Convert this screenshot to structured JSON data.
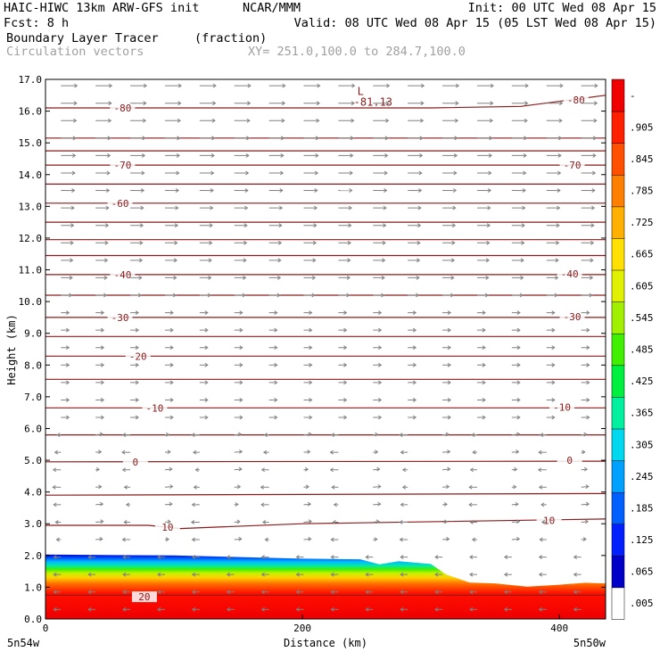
{
  "header": {
    "model": "HAIC-HIWC 13km ARW-GFS init",
    "org": "NCAR/MMM",
    "init": "Init: 00 UTC Wed 08 Apr 15",
    "fcst": "Fcst:    8 h",
    "valid": "Valid: 08 UTC Wed 08 Apr 15 (05 LST Wed 08 Apr 15)",
    "field": "Boundary Layer Tracer",
    "units": "(fraction)",
    "overlay": "Circulation vectors",
    "xy": "XY= 251.0,100.0 to 284.7,100.0"
  },
  "colors": {
    "contour": "#8b1a1a",
    "vector": "#808080",
    "scale": [
      "#ffffff",
      "#0000c8",
      "#0020ff",
      "#0060ff",
      "#00a0ff",
      "#00d8f0",
      "#00f0a0",
      "#00f040",
      "#40f000",
      "#a0f000",
      "#e0f000",
      "#ffe000",
      "#ffb000",
      "#ff8000",
      "#ff5000",
      "#ff2000",
      "#f00000"
    ]
  },
  "chart_data": {
    "type": "cross-section",
    "xlabel": "Distance (km)",
    "ylabel": "Height (km)",
    "xlim": [
      0,
      436
    ],
    "ylim": [
      0,
      17
    ],
    "x_ticks": [
      "0",
      "200",
      "400"
    ],
    "x_tick_values": [
      0,
      200,
      400
    ],
    "y_ticks": [
      "0.0",
      "1.0",
      "2.0",
      "3.0",
      "4.0",
      "5.0",
      "6.0",
      "7.0",
      "8.0",
      "9.0",
      "10.0",
      "11.0",
      "12.0",
      "13.0",
      "14.0",
      "15.0",
      "16.0",
      "17.0"
    ],
    "endpoint_left": "5n54w",
    "endpoint_right": "5n50w",
    "colorbar_labels": [
      ".005",
      ".065",
      ".125",
      ".185",
      ".245",
      ".305",
      ".365",
      ".425",
      ".485",
      ".545",
      ".605",
      ".665",
      ".725",
      ".785",
      ".845",
      ".905",
      "-"
    ],
    "min_label": {
      "marker": "L",
      "value": "-81.13",
      "x": 215,
      "y": 16.4
    },
    "tracer_top": [
      [
        0,
        2.03
      ],
      [
        100,
        2.0
      ],
      [
        200,
        1.9
      ],
      [
        245,
        1.88
      ],
      [
        260,
        1.72
      ],
      [
        275,
        1.82
      ],
      [
        300,
        1.73
      ],
      [
        312,
        1.4
      ],
      [
        330,
        1.15
      ],
      [
        350,
        1.12
      ],
      [
        375,
        1.02
      ],
      [
        400,
        1.08
      ],
      [
        420,
        1.14
      ],
      [
        436,
        1.12
      ]
    ],
    "contours": [
      {
        "label": "20",
        "pts": [
          [
            0,
            0.75
          ],
          [
            436,
            0.75
          ]
        ],
        "labels": [
          [
            77,
            0.7
          ]
        ]
      },
      {
        "label": "10",
        "pts": [
          [
            0,
            2.95
          ],
          [
            80,
            2.95
          ],
          [
            105,
            2.85
          ],
          [
            200,
            3.0
          ],
          [
            436,
            3.15
          ]
        ],
        "labels": [
          [
            95,
            2.9
          ],
          [
            392,
            3.1
          ]
        ]
      },
      {
        "label": "",
        "pts": [
          [
            0,
            3.9
          ],
          [
            436,
            3.95
          ]
        ],
        "labels": []
      },
      {
        "label": "0",
        "pts": [
          [
            0,
            4.95
          ],
          [
            436,
            4.97
          ]
        ],
        "labels": [
          [
            70,
            4.95
          ],
          [
            408,
            5.0
          ]
        ]
      },
      {
        "label": "",
        "pts": [
          [
            0,
            5.8
          ],
          [
            436,
            5.8
          ]
        ],
        "labels": []
      },
      {
        "label": "-10",
        "pts": [
          [
            0,
            6.65
          ],
          [
            436,
            6.65
          ]
        ],
        "labels": [
          [
            85,
            6.65
          ],
          [
            402,
            6.67
          ]
        ]
      },
      {
        "label": "",
        "pts": [
          [
            0,
            7.55
          ],
          [
            436,
            7.55
          ]
        ],
        "labels": []
      },
      {
        "label": "-20",
        "pts": [
          [
            0,
            8.28
          ],
          [
            436,
            8.28
          ]
        ],
        "labels": [
          [
            72,
            8.28
          ]
        ]
      },
      {
        "label": "",
        "pts": [
          [
            0,
            8.9
          ],
          [
            436,
            8.9
          ]
        ],
        "labels": []
      },
      {
        "label": "-30",
        "pts": [
          [
            0,
            9.5
          ],
          [
            436,
            9.5
          ]
        ],
        "labels": [
          [
            58,
            9.5
          ],
          [
            410,
            9.52
          ]
        ]
      },
      {
        "label": "",
        "pts": [
          [
            0,
            10.2
          ],
          [
            436,
            10.2
          ]
        ],
        "labels": []
      },
      {
        "label": "-40",
        "pts": [
          [
            0,
            10.85
          ],
          [
            436,
            10.85
          ]
        ],
        "labels": [
          [
            60,
            10.85
          ],
          [
            408,
            10.87
          ]
        ]
      },
      {
        "label": "",
        "pts": [
          [
            0,
            11.45
          ],
          [
            436,
            11.45
          ]
        ],
        "labels": []
      },
      {
        "label": "",
        "pts": [
          [
            0,
            11.95
          ],
          [
            436,
            11.95
          ]
        ],
        "labels": []
      },
      {
        "label": "",
        "pts": [
          [
            0,
            12.5
          ],
          [
            436,
            12.5
          ]
        ],
        "labels": []
      },
      {
        "label": "-60",
        "pts": [
          [
            0,
            13.1
          ],
          [
            436,
            13.1
          ]
        ],
        "labels": [
          [
            58,
            13.1
          ]
        ]
      },
      {
        "label": "",
        "pts": [
          [
            0,
            13.7
          ],
          [
            436,
            13.7
          ]
        ],
        "labels": []
      },
      {
        "label": "-70",
        "pts": [
          [
            0,
            14.3
          ],
          [
            436,
            14.3
          ]
        ],
        "labels": [
          [
            60,
            14.3
          ],
          [
            410,
            14.3
          ]
        ]
      },
      {
        "label": "",
        "pts": [
          [
            0,
            14.75
          ],
          [
            436,
            14.75
          ]
        ],
        "labels": []
      },
      {
        "label": "",
        "pts": [
          [
            0,
            15.15
          ],
          [
            436,
            15.15
          ]
        ],
        "labels": []
      },
      {
        "label": "-80",
        "pts": [
          [
            0,
            16.1
          ],
          [
            300,
            16.1
          ],
          [
            370,
            16.15
          ],
          [
            436,
            16.5
          ]
        ],
        "labels": [
          [
            60,
            16.1
          ],
          [
            413,
            16.35
          ]
        ]
      }
    ]
  }
}
